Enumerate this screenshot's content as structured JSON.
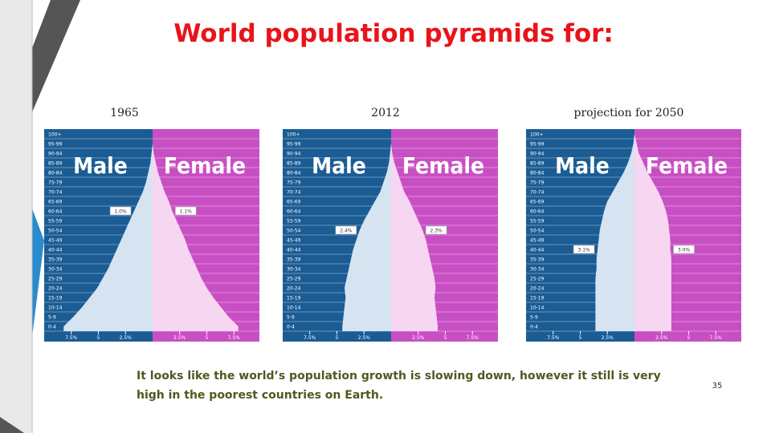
{
  "title": "World population pyramids for:",
  "note": "It looks like the world’s population growth is slowing down, however it still is very high in the poorest countries on Earth.",
  "page_number": "35",
  "chart_data": [
    {
      "type": "pyramid",
      "title": "1965",
      "categories": [
        "100+",
        "95-99",
        "90-94",
        "85-89",
        "80-84",
        "75-79",
        "70-74",
        "65-69",
        "60-64",
        "55-59",
        "50-54",
        "45-49",
        "40-44",
        "35-39",
        "30-34",
        "25-29",
        "20-24",
        "15-19",
        "10-14",
        "5-9",
        "0-4"
      ],
      "series": [
        {
          "name": "Male",
          "color": "#1b5c94",
          "area_color": "#d6e4f1",
          "values": [
            0,
            0,
            0.1,
            0.2,
            0.4,
            0.6,
            0.9,
            1.3,
            1.7,
            2.1,
            2.5,
            2.9,
            3.3,
            3.7,
            4.1,
            4.6,
            5.1,
            5.8,
            6.5,
            7.3,
            8.2
          ]
        },
        {
          "name": "Female",
          "color": "#c84fc3",
          "area_color": "#f7d6f1",
          "values": [
            0,
            0,
            0.1,
            0.3,
            0.5,
            0.8,
            1.1,
            1.5,
            1.8,
            2.2,
            2.6,
            3.0,
            3.3,
            3.7,
            4.1,
            4.5,
            5.0,
            5.6,
            6.3,
            7.0,
            7.9
          ]
        }
      ],
      "xlim": [
        0,
        10
      ],
      "xticks": [
        {
          "value": 2.5,
          "label": "2.5%"
        },
        5,
        {
          "value": 7.5,
          "label": "7.5%"
        }
      ],
      "annotations": [
        "1.0%",
        "1.1%"
      ]
    },
    {
      "type": "pyramid",
      "title": "2012",
      "categories": [
        "100+",
        "95-99",
        "90-94",
        "85-89",
        "80-84",
        "75-79",
        "70-74",
        "65-69",
        "60-64",
        "55-59",
        "50-54",
        "45-49",
        "40-44",
        "35-39",
        "30-34",
        "25-29",
        "20-24",
        "15-19",
        "10-14",
        "5-9",
        "0-4"
      ],
      "series": [
        {
          "name": "Male",
          "color": "#1b5c94",
          "area_color": "#d6e4f1",
          "values": [
            0,
            0,
            0.1,
            0.2,
            0.4,
            0.7,
            1.0,
            1.5,
            2.0,
            2.5,
            2.9,
            3.2,
            3.5,
            3.7,
            3.9,
            4.1,
            4.3,
            4.2,
            4.3,
            4.4,
            4.5
          ]
        },
        {
          "name": "Female",
          "color": "#c84fc3",
          "area_color": "#f7d6f1",
          "values": [
            0,
            0,
            0.1,
            0.3,
            0.6,
            0.9,
            1.2,
            1.7,
            2.1,
            2.5,
            2.9,
            3.2,
            3.4,
            3.6,
            3.8,
            4.0,
            4.1,
            4.0,
            4.1,
            4.2,
            4.3
          ]
        }
      ],
      "xlim": [
        0,
        10
      ],
      "xticks": [
        {
          "value": 2.5,
          "label": "2.5%"
        },
        5,
        {
          "value": 7.5,
          "label": "7.5%"
        }
      ],
      "annotations": [
        "2.4%",
        "2.3%"
      ]
    },
    {
      "type": "pyramid",
      "title": "projection for 2050",
      "categories": [
        "100+",
        "95-99",
        "90-94",
        "85-89",
        "80-84",
        "75-79",
        "70-74",
        "65-69",
        "60-64",
        "55-59",
        "50-54",
        "45-49",
        "40-44",
        "35-39",
        "30-34",
        "25-29",
        "20-24",
        "15-19",
        "10-14",
        "5-9",
        "0-4"
      ],
      "series": [
        {
          "name": "Male",
          "color": "#1b5c94",
          "area_color": "#d6e4f1",
          "values": [
            0,
            0.1,
            0.3,
            0.6,
            1.0,
            1.5,
            2.0,
            2.5,
            2.8,
            3.0,
            3.2,
            3.3,
            3.4,
            3.5,
            3.5,
            3.6,
            3.6,
            3.6,
            3.6,
            3.6,
            3.6
          ]
        },
        {
          "name": "Female",
          "color": "#c84fc3",
          "area_color": "#f7d6f1",
          "values": [
            0,
            0.2,
            0.4,
            0.8,
            1.2,
            1.7,
            2.2,
            2.6,
            2.9,
            3.1,
            3.2,
            3.3,
            3.3,
            3.4,
            3.4,
            3.4,
            3.4,
            3.4,
            3.4,
            3.4,
            3.4
          ]
        }
      ],
      "xlim": [
        0,
        10
      ],
      "xticks": [
        {
          "value": 2.5,
          "label": "2.5%"
        },
        5,
        {
          "value": 7.5,
          "label": "7.5%"
        }
      ],
      "annotations": [
        "3.1%",
        "3.0%"
      ]
    }
  ]
}
